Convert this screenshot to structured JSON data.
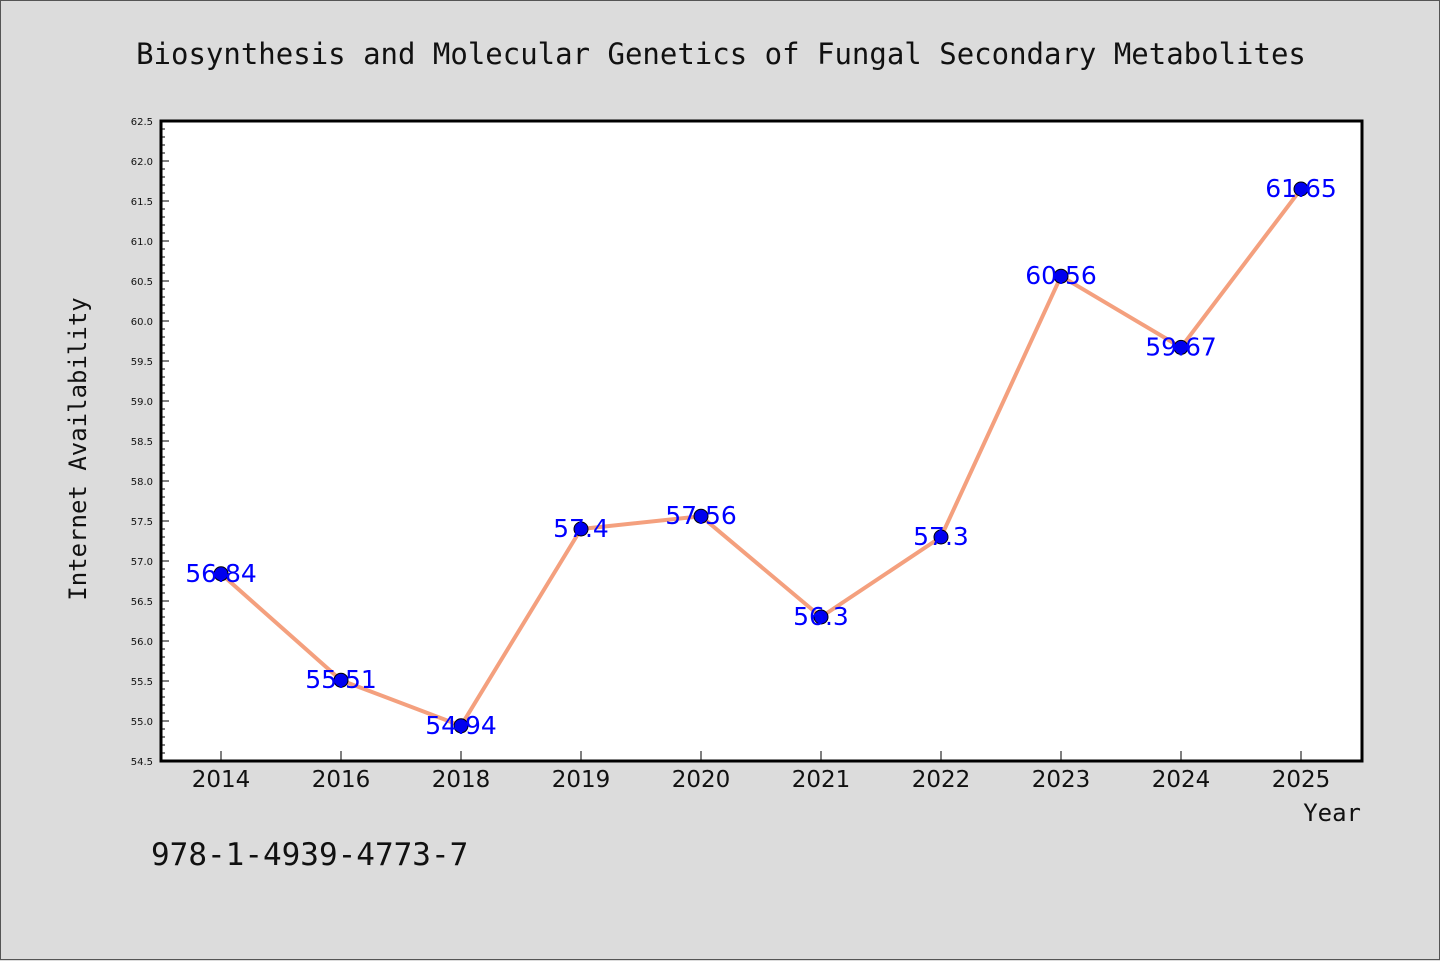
{
  "chart_data": {
    "type": "line",
    "title": "Biosynthesis and Molecular Genetics of Fungal Secondary Metabolites",
    "xlabel": "Year",
    "ylabel": "Internet Availability",
    "categories": [
      "2014",
      "2016",
      "2018",
      "2019",
      "2020",
      "2021",
      "2022",
      "2023",
      "2024",
      "2025"
    ],
    "series": [
      {
        "values": [
          56.84,
          55.51,
          54.94,
          57.4,
          57.56,
          56.3,
          57.3,
          60.56,
          59.67,
          61.65
        ],
        "data_labels": [
          "56.84",
          "55.51",
          "54.94",
          "57.4",
          "57.56",
          "56.3",
          "57.3",
          "60.56",
          "59.67",
          "61.65"
        ],
        "line_color": "#f4a07e",
        "marker_color": "#0000ee"
      }
    ],
    "ylim": [
      54.5,
      62.5
    ],
    "yticks": [
      "54.5",
      "55.0",
      "55.5",
      "56.0",
      "56.5",
      "57.0",
      "57.5",
      "58.0",
      "58.5",
      "59.0",
      "59.5",
      "60.0",
      "60.5",
      "61.0",
      "61.5",
      "62.0",
      "62.5"
    ],
    "grid": false,
    "legend": "none"
  },
  "footer": {
    "isbn": "978-1-4939-4773-7"
  },
  "colors": {
    "background": "#dcdcdc",
    "plot_background": "#ffffff",
    "data_label": "#0000ff"
  }
}
